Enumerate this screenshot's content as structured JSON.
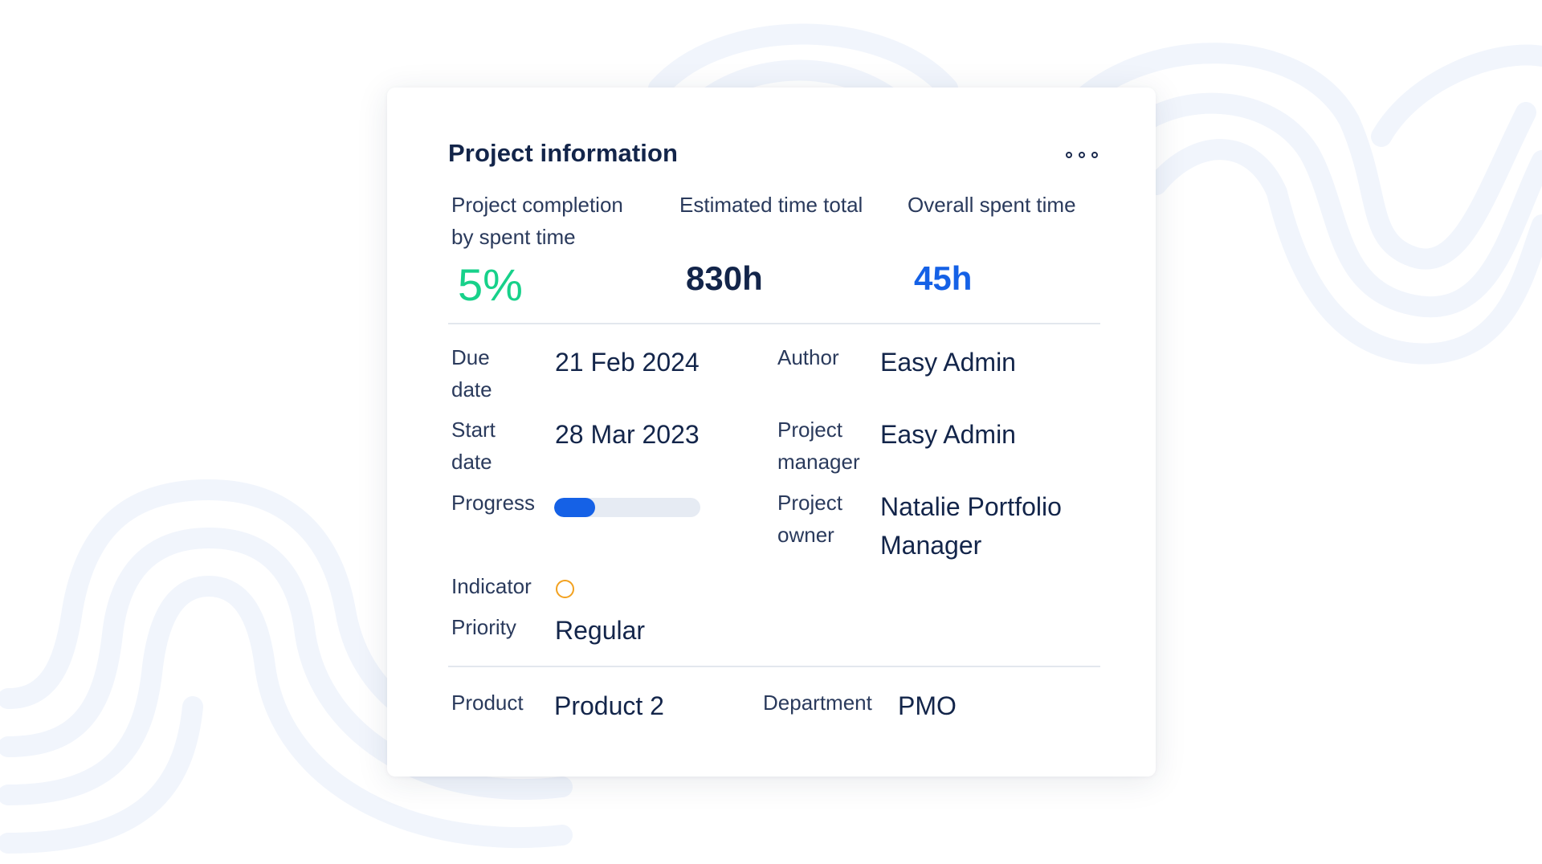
{
  "card": {
    "title": "Project information",
    "more_icon": "more-horizontal-icon"
  },
  "stats": {
    "completion": {
      "label_line1": "Project completion",
      "label_line2": "by spent time",
      "value": "5%",
      "color": "#17d18a"
    },
    "estimated": {
      "label": "Estimated time total",
      "value": "830h",
      "color": "#13254a"
    },
    "spent": {
      "label": "Overall spent time",
      "value": "45h",
      "color": "#1561e6"
    }
  },
  "fields": {
    "due_date": {
      "label_line1": "Due",
      "label_line2": "date",
      "value": "21 Feb 2024"
    },
    "start_date": {
      "label_line1": "Start",
      "label_line2": "date",
      "value": "28 Mar 2023"
    },
    "progress": {
      "label": "Progress",
      "fraction": 0.28,
      "color": "#1561e6"
    },
    "indicator": {
      "label": "Indicator",
      "color": "#f2a11f",
      "icon": "circle-status-icon"
    },
    "priority": {
      "label": "Priority",
      "value": "Regular"
    },
    "author": {
      "label": "Author",
      "value": "Easy Admin"
    },
    "project_manager": {
      "label_line1": "Project",
      "label_line2": "manager",
      "value": "Easy Admin"
    },
    "project_owner": {
      "label_line1": "Project",
      "label_line2": "owner",
      "value_line1": "Natalie Portfolio",
      "value_line2": "Manager"
    }
  },
  "custom_fields": {
    "product": {
      "label": "Product",
      "value": "Product 2"
    },
    "department": {
      "label": "Department",
      "value": "PMO"
    }
  }
}
